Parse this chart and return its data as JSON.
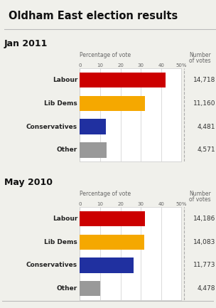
{
  "title": "Oldham East election results",
  "section1_label": "Jan 2011",
  "section2_label": "May 2010",
  "axis_label": "Percentage of vote",
  "right_header1": "Number",
  "right_header2": "of votes",
  "categories": [
    "Labour",
    "Lib Dems",
    "Conservatives",
    "Other"
  ],
  "colors": [
    "#cc0000",
    "#f5a800",
    "#2030a0",
    "#999999"
  ],
  "jan2011_pct": [
    42.1,
    31.9,
    12.8,
    13.1
  ],
  "jan2011_votes": [
    "14,718",
    "11,160",
    "4,481",
    "4,571"
  ],
  "may2010_pct": [
    31.9,
    31.6,
    26.4,
    10.1
  ],
  "may2010_votes": [
    "14,186",
    "14,083",
    "11,773",
    "4,478"
  ],
  "xlim": [
    0,
    50
  ],
  "xticks": [
    0,
    10,
    20,
    30,
    40,
    50
  ],
  "xtick_labels": [
    "0",
    "10",
    "20",
    "30",
    "40",
    "50%"
  ],
  "bg_color": "#f0f0eb",
  "bar_bg": "#ffffff",
  "grid_color": "#cccccc",
  "title_color": "#111111",
  "section_label_color": "#111111",
  "cat_label_color": "#222222",
  "vote_label_color": "#333333",
  "header_color": "#666666",
  "sep_line_color": "#bbbbbb",
  "dashed_line_color": "#aaaaaa"
}
